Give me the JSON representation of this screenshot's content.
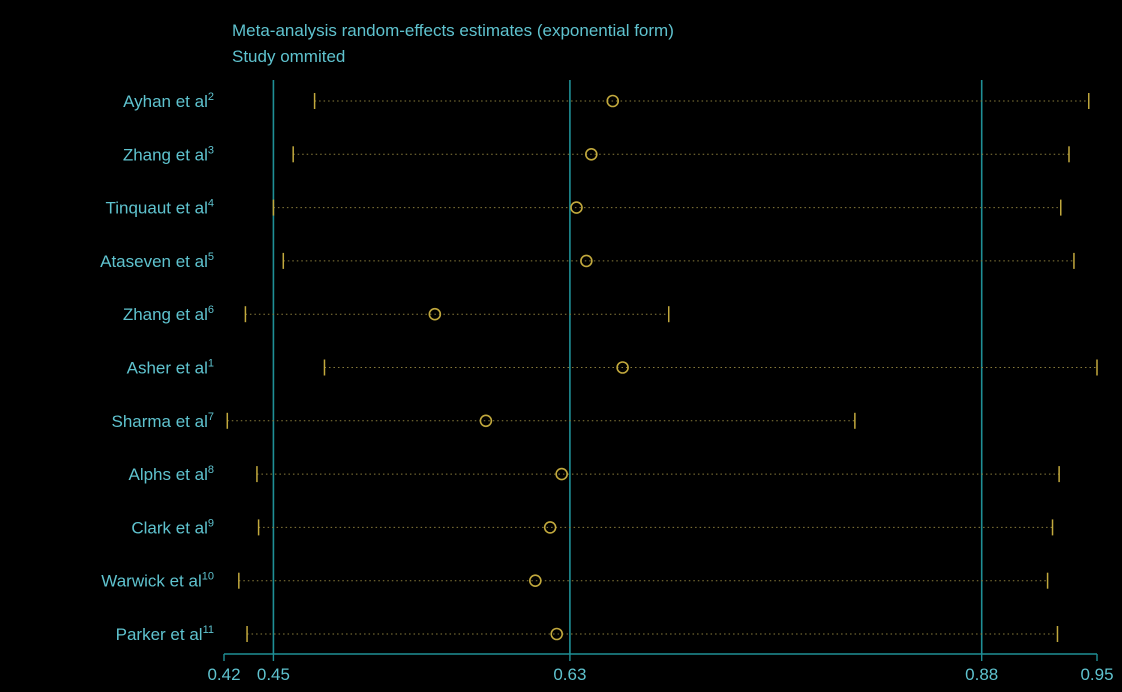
{
  "chart_data": {
    "type": "forest",
    "title": "Meta-analysis random-effects estimates (exponential form)",
    "subtitle": "Study ommited",
    "xlabel": "",
    "ylabel": "",
    "xlim": [
      0.42,
      0.95
    ],
    "xticks": [
      {
        "value": 0.42,
        "label": "0.42"
      },
      {
        "value": 0.45,
        "label": "0.45"
      },
      {
        "value": 0.63,
        "label": "0.63"
      },
      {
        "value": 0.88,
        "label": "0.88"
      },
      {
        "value": 0.95,
        "label": "0.95"
      }
    ],
    "reference_lines": [
      0.45,
      0.63,
      0.88
    ],
    "grid": false,
    "studies": [
      {
        "name": "Ayhan et al",
        "ref": "2",
        "estimate": 0.656,
        "lower": 0.475,
        "upper": 0.945
      },
      {
        "name": "Zhang et al",
        "ref": "3",
        "estimate": 0.643,
        "lower": 0.462,
        "upper": 0.933
      },
      {
        "name": "Tinquaut et al",
        "ref": "4",
        "estimate": 0.634,
        "lower": 0.45,
        "upper": 0.928
      },
      {
        "name": "Ataseven et al",
        "ref": "5",
        "estimate": 0.64,
        "lower": 0.456,
        "upper": 0.936
      },
      {
        "name": "Zhang et al",
        "ref": "6",
        "estimate": 0.548,
        "lower": 0.433,
        "upper": 0.69
      },
      {
        "name": "Asher et al",
        "ref": "1",
        "estimate": 0.662,
        "lower": 0.481,
        "upper": 0.95
      },
      {
        "name": "Sharma et al",
        "ref": "7",
        "estimate": 0.579,
        "lower": 0.422,
        "upper": 0.803
      },
      {
        "name": "Alphs et al",
        "ref": "8",
        "estimate": 0.625,
        "lower": 0.44,
        "upper": 0.927
      },
      {
        "name": "Clark et al",
        "ref": "9",
        "estimate": 0.618,
        "lower": 0.441,
        "upper": 0.923
      },
      {
        "name": "Warwick et al",
        "ref": "10",
        "estimate": 0.609,
        "lower": 0.429,
        "upper": 0.92
      },
      {
        "name": "Parker et al",
        "ref": "11",
        "estimate": 0.622,
        "lower": 0.434,
        "upper": 0.926
      }
    ]
  },
  "colors": {
    "background": "#000000",
    "text": "#5fc3cf",
    "reference_line": "#1f8f96",
    "axis": "#1f8f96",
    "marker": "#c2a93d",
    "ci_line": "#8a7d3c"
  }
}
